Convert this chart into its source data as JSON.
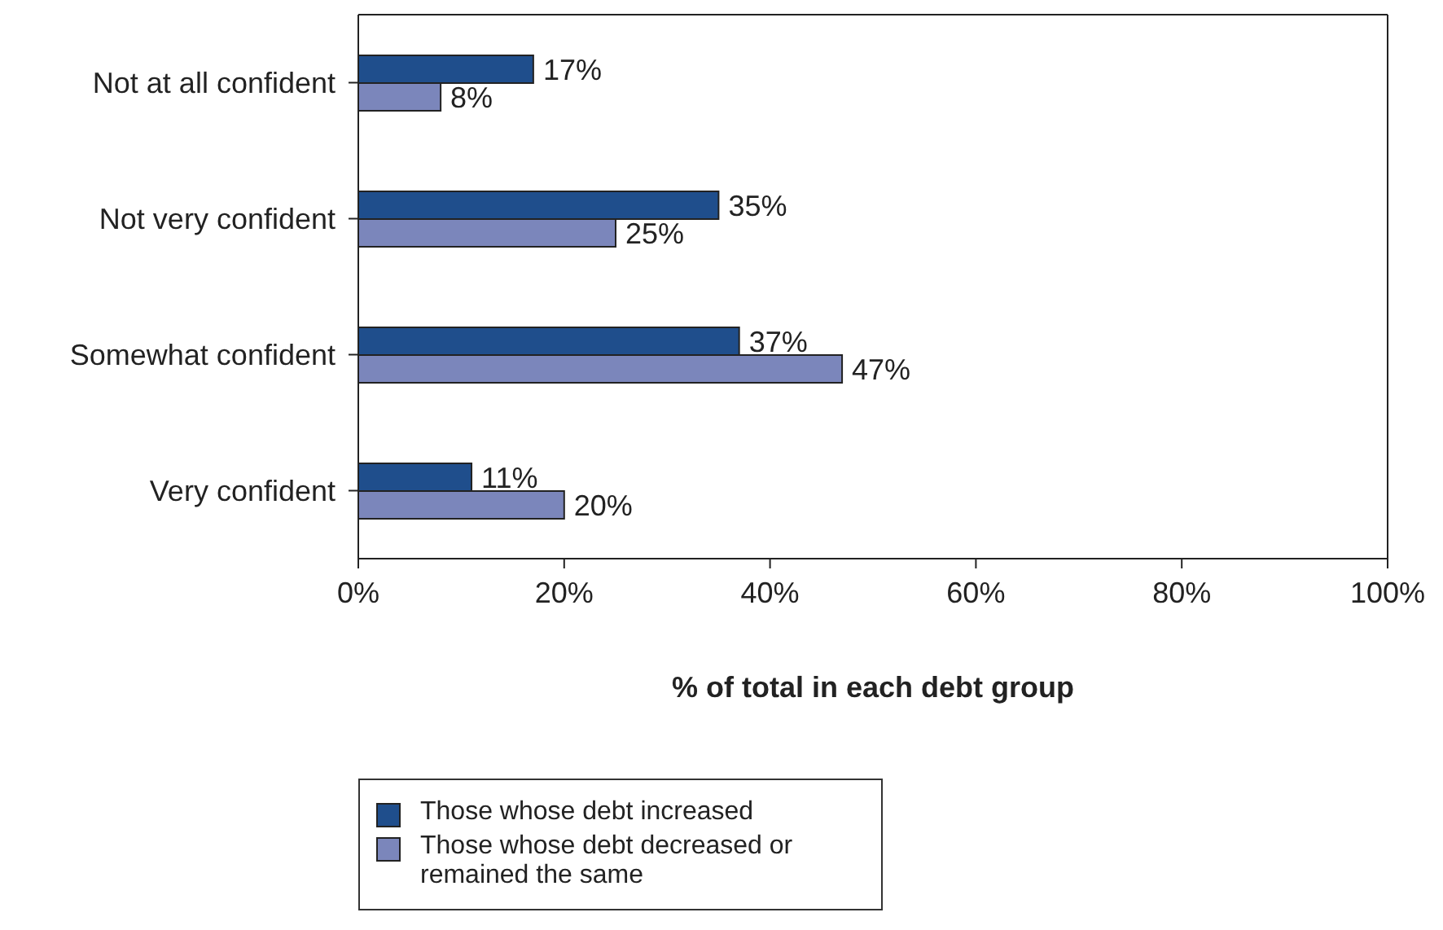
{
  "chart_data": {
    "type": "bar",
    "orientation": "horizontal",
    "xlabel": "% of total in each debt group",
    "categories": [
      "Not at all confident",
      "Not very confident",
      "Somewhat confident",
      "Very confident"
    ],
    "series": [
      {
        "name": "Those whose debt increased",
        "color": "#1f4e8c",
        "values": [
          17,
          35,
          37,
          11
        ],
        "value_labels": [
          "17%",
          "35%",
          "37%",
          "11%"
        ]
      },
      {
        "name": "Those whose debt decreased or remained the same",
        "color": "#7b86bb",
        "values": [
          8,
          25,
          47,
          20
        ],
        "value_labels": [
          "8%",
          "25%",
          "47%",
          "20%"
        ]
      }
    ],
    "xlim": [
      0,
      100
    ],
    "xticks": [
      {
        "value": 0,
        "label": "0%"
      },
      {
        "value": 20,
        "label": "20%"
      },
      {
        "value": 40,
        "label": "40%"
      },
      {
        "value": 60,
        "label": "60%"
      },
      {
        "value": 80,
        "label": "80%"
      },
      {
        "value": 100,
        "label": "100%"
      }
    ],
    "grid": false,
    "legend": "bottom"
  }
}
